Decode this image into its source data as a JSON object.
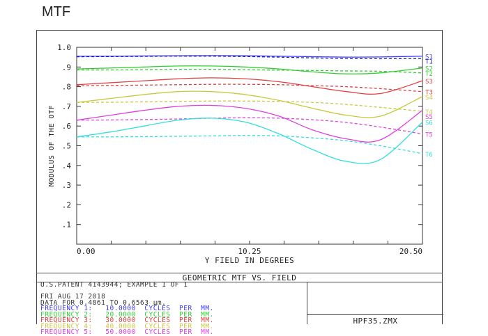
{
  "page": {
    "heading": "MTF"
  },
  "chart_data": {
    "type": "line",
    "title": "GEOMETRIC MTF VS. FIELD",
    "xlabel": "Y FIELD IN DEGREES",
    "ylabel": "MODULUS OF THE OTF",
    "xlim": [
      0,
      20.5
    ],
    "ylim": [
      0,
      1.0
    ],
    "x_ticks": [
      "0.00",
      "10.25",
      "20.50"
    ],
    "y_ticks": [
      "1.0",
      ".9",
      ".8",
      ".7",
      ".6",
      ".5",
      ".4",
      ".3",
      ".2",
      ".1"
    ],
    "x": [
      0,
      2,
      4,
      6,
      8,
      10,
      12,
      14,
      16,
      18,
      20.5
    ],
    "series": [
      {
        "name": "S1",
        "color": "#3a3aff",
        "dashed": false,
        "values": [
          0.955,
          0.955,
          0.956,
          0.957,
          0.958,
          0.957,
          0.955,
          0.952,
          0.95,
          0.951,
          0.955
        ]
      },
      {
        "name": "T1",
        "color": "#2020b0",
        "dashed": true,
        "values": [
          0.952,
          0.953,
          0.954,
          0.955,
          0.955,
          0.953,
          0.95,
          0.946,
          0.943,
          0.942,
          0.943
        ]
      },
      {
        "name": "S2",
        "color": "#33cc33",
        "dashed": false,
        "values": [
          0.89,
          0.895,
          0.9,
          0.905,
          0.905,
          0.9,
          0.89,
          0.875,
          0.865,
          0.87,
          0.895
        ]
      },
      {
        "name": "T2",
        "color": "#33cc33",
        "dashed": true,
        "values": [
          0.885,
          0.885,
          0.886,
          0.888,
          0.888,
          0.886,
          0.884,
          0.882,
          0.88,
          0.878,
          0.87
        ]
      },
      {
        "name": "S3",
        "color": "#e04040",
        "dashed": false,
        "values": [
          0.81,
          0.82,
          0.83,
          0.84,
          0.845,
          0.84,
          0.825,
          0.8,
          0.775,
          0.765,
          0.83
        ]
      },
      {
        "name": "T3",
        "color": "#e04040",
        "dashed": true,
        "values": [
          0.805,
          0.806,
          0.808,
          0.81,
          0.812,
          0.812,
          0.81,
          0.805,
          0.8,
          0.79,
          0.775
        ]
      },
      {
        "name": "S4",
        "color": "#c8c840",
        "dashed": false,
        "values": [
          0.72,
          0.74,
          0.76,
          0.775,
          0.775,
          0.76,
          0.73,
          0.69,
          0.655,
          0.65,
          0.75
        ]
      },
      {
        "name": "T4",
        "color": "#c8c840",
        "dashed": true,
        "values": [
          0.72,
          0.721,
          0.723,
          0.725,
          0.727,
          0.727,
          0.725,
          0.72,
          0.71,
          0.695,
          0.675
        ]
      },
      {
        "name": "S5",
        "color": "#e040e0",
        "dashed": false,
        "values": [
          0.63,
          0.655,
          0.68,
          0.7,
          0.705,
          0.69,
          0.65,
          0.58,
          0.535,
          0.53,
          0.68
        ]
      },
      {
        "name": "T5",
        "color": "#e040e0",
        "dashed": true,
        "values": [
          0.63,
          0.631,
          0.633,
          0.636,
          0.64,
          0.642,
          0.64,
          0.632,
          0.618,
          0.595,
          0.56
        ]
      },
      {
        "name": "S6",
        "color": "#33dddd",
        "dashed": false,
        "values": [
          0.545,
          0.57,
          0.6,
          0.63,
          0.64,
          0.62,
          0.56,
          0.48,
          0.42,
          0.43,
          0.62
        ]
      },
      {
        "name": "T6",
        "color": "#33dddd",
        "dashed": true,
        "values": [
          0.545,
          0.545,
          0.546,
          0.548,
          0.55,
          0.552,
          0.55,
          0.54,
          0.525,
          0.5,
          0.46
        ]
      }
    ],
    "label_positions": [
      "S1",
      "T1",
      "S2",
      "T2",
      "S3",
      "T3",
      "S4",
      "T4",
      "S5",
      "T5",
      "S6",
      "T6"
    ]
  },
  "info": {
    "lines": [
      {
        "text": "U.S.PATENT 4143944; EXAMPLE 1 OF 1",
        "color": "#333333"
      },
      {
        "text": "",
        "color": "#333333"
      },
      {
        "text": "FRI AUG 17 2018",
        "color": "#333333"
      },
      {
        "text": "DATA FOR 0.4861 TO 0.6563 µm.",
        "color": "#333333"
      },
      {
        "text": "FREQUENCY 1:   10.0000  CYCLES  PER  MM.",
        "color": "#3a3aff"
      },
      {
        "text": "FREQUENCY 2:   20.0000  CYCLES  PER  MM.",
        "color": "#33cc33"
      },
      {
        "text": "FREQUENCY 3:   30.0000  CYCLES  PER  MM.",
        "color": "#e04040"
      },
      {
        "text": "FREQUENCY 4:   40.0000  CYCLES  PER  MM.",
        "color": "#c8c840"
      },
      {
        "text": "FREQUENCY 5:   50.0000  CYCLES  PER  MM.",
        "color": "#e040e0"
      }
    ],
    "file_name": "HPF35.ZMX"
  }
}
